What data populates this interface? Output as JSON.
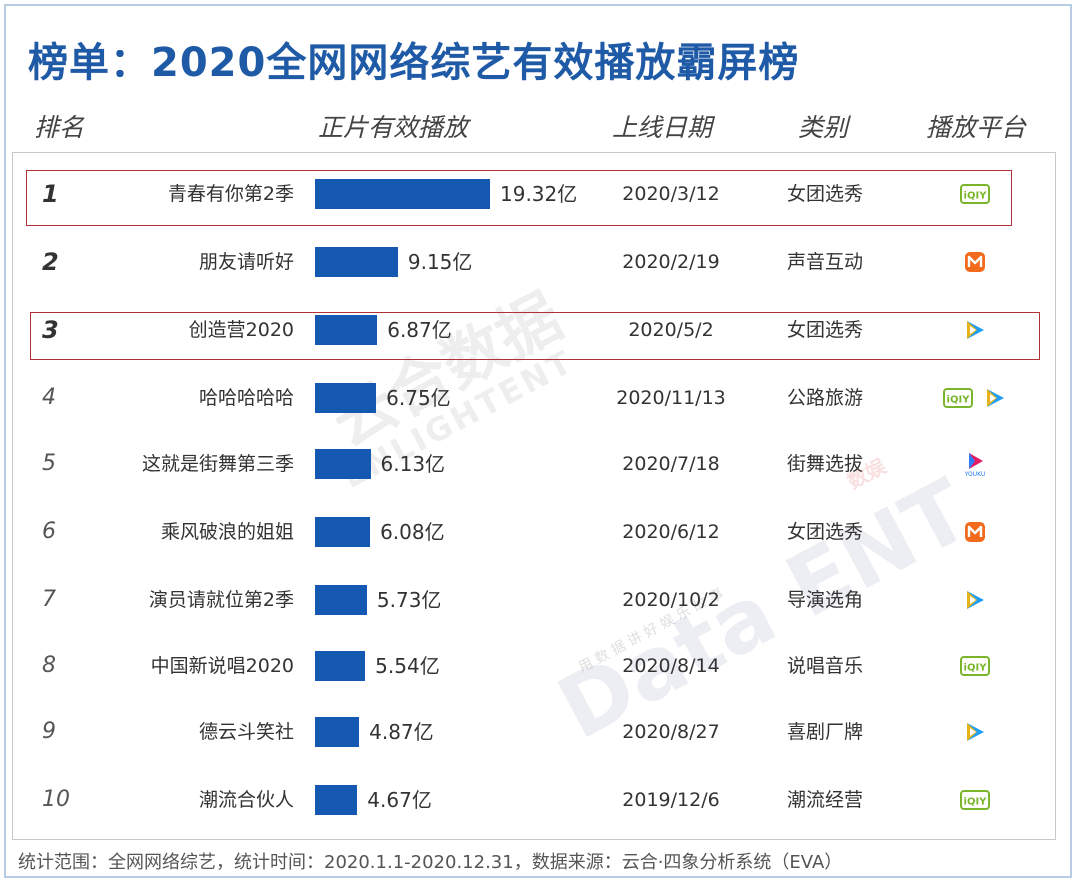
{
  "title": "榜单：2020全网网络综艺有效播放霸屏榜",
  "headers": {
    "rank": "排名",
    "plays": "正片有效播放",
    "date": "上线日期",
    "category": "类别",
    "platform": "播放平台"
  },
  "footer": "统计范围：全网网络综艺，统计时间：2020.1.1-2020.12.31，数据来源：云合·四象分析系统（EVA）",
  "watermark": {
    "brand_cn": "云合数据",
    "brand_en": "ENLIGHTENT",
    "data_ent": "Data ENT",
    "small": "数娱",
    "slogan": "用 数 据 讲 好 娱 乐 故 事"
  },
  "colors": {
    "title": "#1f5aa6",
    "bar": "#1458b1",
    "highlight": "#b0313a",
    "iqiyi": "#7ab52b",
    "tencent": "#1e9ff2",
    "mango": "#f26b1d",
    "youku": "#e31c63"
  },
  "chart_data": {
    "type": "bar",
    "orientation": "horizontal",
    "unit": "亿",
    "highlighted_ranks": [
      1,
      3
    ],
    "rows": [
      {
        "rank": "1",
        "name": "青春有你第2季",
        "value": 19.32,
        "label": "19.32亿",
        "date": "2020/3/12",
        "category": "女团选秀",
        "platforms": [
          "iqiyi-icon"
        ]
      },
      {
        "rank": "2",
        "name": "朋友请听好",
        "value": 9.15,
        "label": "9.15亿",
        "date": "2020/2/19",
        "category": "声音互动",
        "platforms": [
          "mango-tv-icon"
        ]
      },
      {
        "rank": "3",
        "name": "创造营2020",
        "value": 6.87,
        "label": "6.87亿",
        "date": "2020/5/2",
        "category": "女团选秀",
        "platforms": [
          "tencent-video-icon"
        ]
      },
      {
        "rank": "4",
        "name": "哈哈哈哈哈",
        "value": 6.75,
        "label": "6.75亿",
        "date": "2020/11/13",
        "category": "公路旅游",
        "platforms": [
          "iqiyi-icon",
          "tencent-video-icon"
        ]
      },
      {
        "rank": "5",
        "name": "这就是街舞第三季",
        "value": 6.13,
        "label": "6.13亿",
        "date": "2020/7/18",
        "category": "街舞选拔",
        "platforms": [
          "youku-icon"
        ]
      },
      {
        "rank": "6",
        "name": "乘风破浪的姐姐",
        "value": 6.08,
        "label": "6.08亿",
        "date": "2020/6/12",
        "category": "女团选秀",
        "platforms": [
          "mango-tv-icon"
        ]
      },
      {
        "rank": "7",
        "name": "演员请就位第2季",
        "value": 5.73,
        "label": "5.73亿",
        "date": "2020/10/2",
        "category": "导演选角",
        "platforms": [
          "tencent-video-icon"
        ]
      },
      {
        "rank": "8",
        "name": "中国新说唱2020",
        "value": 5.54,
        "label": "5.54亿",
        "date": "2020/8/14",
        "category": "说唱音乐",
        "platforms": [
          "iqiyi-icon"
        ]
      },
      {
        "rank": "9",
        "name": "德云斗笑社",
        "value": 4.87,
        "label": "4.87亿",
        "date": "2020/8/27",
        "category": "喜剧厂牌",
        "platforms": [
          "tencent-video-icon"
        ]
      },
      {
        "rank": "10",
        "name": "潮流合伙人",
        "value": 4.67,
        "label": "4.67亿",
        "date": "2019/12/6",
        "category": "潮流经营",
        "platforms": [
          "iqiyi-icon"
        ]
      }
    ]
  }
}
